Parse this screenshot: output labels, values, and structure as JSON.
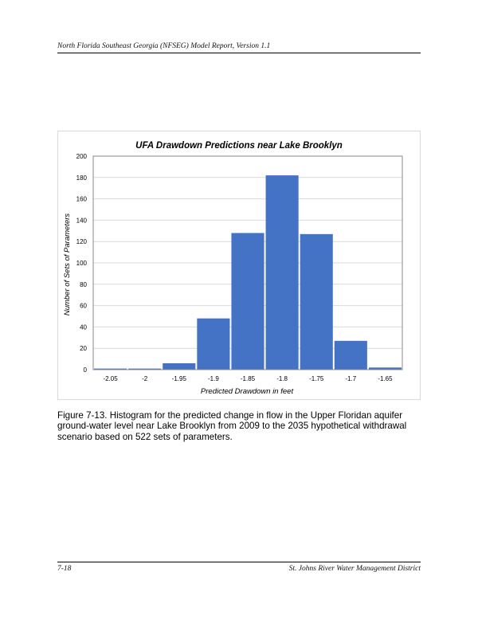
{
  "header": {
    "title": "North Florida Southeast Georgia (NFSEG) Model Report, Version 1.1"
  },
  "chart_data": {
    "type": "bar",
    "title": "UFA Drawdown Predictions near Lake Brooklyn",
    "xlabel": "Predicted Drawdown in feet",
    "ylabel": "Number of Sets of Parameters",
    "x_tick_labels": [
      "-2.05",
      "-2",
      "-1.95",
      "-1.9",
      "-1.85",
      "-1.8",
      "-1.75",
      "-1.7",
      "-1.65"
    ],
    "y_tick_labels": [
      "0",
      "20",
      "40",
      "60",
      "80",
      "100",
      "120",
      "140",
      "160",
      "180",
      "200"
    ],
    "values": [
      1,
      1,
      6,
      48,
      128,
      182,
      127,
      27,
      2
    ],
    "ylim": [
      0,
      200
    ],
    "grid": true,
    "bar_color": "#4472c4"
  },
  "caption": {
    "text": "Figure 7-13.    Histogram for the predicted change in flow in the Upper Floridan aquifer ground-water level near Lake Brooklyn from 2009 to the 2035 hypothetical withdrawal scenario based on 522 sets of parameters."
  },
  "footer": {
    "page_number": "7-18",
    "organization": "St. Johns River Water Management District"
  }
}
